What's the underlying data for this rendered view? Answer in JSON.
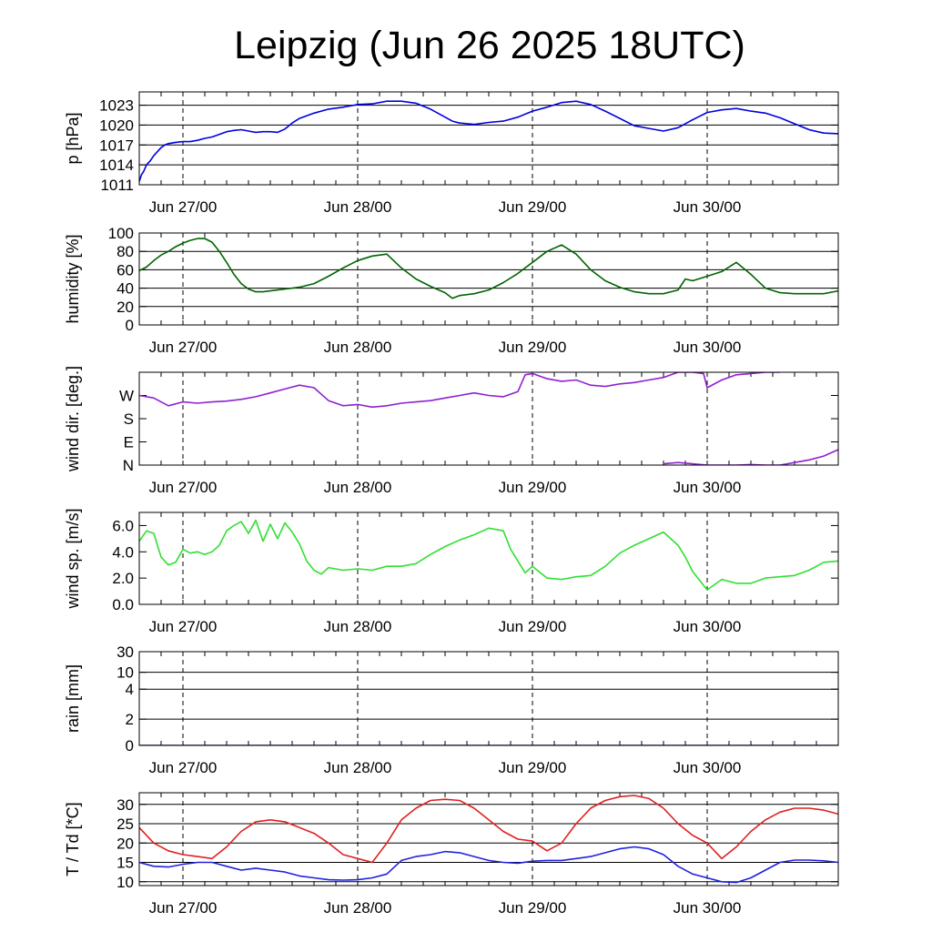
{
  "title": "Leipzig (Jun 26 2025 18UTC)",
  "chart_data": [
    {
      "type": "line",
      "ylabel": "p [hPa]",
      "ylim": [
        1011,
        1025
      ],
      "yticks": [
        1011,
        1014,
        1017,
        1020,
        1023
      ],
      "ytick_labels": [
        "1011",
        "1014",
        "1017",
        "1020",
        "1023"
      ],
      "xlim": [
        0,
        96
      ],
      "xticks": [
        6,
        30,
        54,
        78
      ],
      "xtick_labels": [
        "Jun 27/00",
        "Jun 28/00",
        "Jun 29/00",
        "Jun 30/00"
      ],
      "grid": true,
      "series": [
        {
          "color": "#0000e0",
          "x": [
            0,
            0.3,
            0.6,
            1,
            1.5,
            2,
            2.5,
            3,
            3.5,
            4,
            5,
            6,
            7,
            8,
            9,
            10,
            11,
            12,
            13,
            14,
            15,
            16,
            17,
            18,
            19,
            20,
            21,
            22,
            24,
            26,
            28,
            30,
            32,
            34,
            36,
            38,
            40,
            42,
            43,
            44,
            46,
            48,
            50,
            52,
            54,
            56,
            58,
            60,
            62,
            64,
            66,
            68,
            70,
            72,
            74,
            76,
            78,
            80,
            82,
            84,
            86,
            88,
            90,
            92,
            94,
            96
          ],
          "y": [
            1011.5,
            1012.5,
            1013,
            1014,
            1014.6,
            1015.4,
            1016,
            1016.6,
            1017,
            1017.2,
            1017.4,
            1017.5,
            1017.5,
            1017.7,
            1018,
            1018.2,
            1018.6,
            1019,
            1019.2,
            1019.3,
            1019.1,
            1018.9,
            1019,
            1019,
            1018.9,
            1019.4,
            1020.3,
            1021,
            1021.8,
            1022.4,
            1022.7,
            1023.1,
            1023.2,
            1023.6,
            1023.6,
            1023.3,
            1022.4,
            1021.2,
            1020.6,
            1020.3,
            1020.1,
            1020.4,
            1020.6,
            1021.2,
            1022.1,
            1022.7,
            1023.4,
            1023.6,
            1023.1,
            1022.1,
            1021,
            1019.9,
            1019.5,
            1019.1,
            1019.6,
            1020.8,
            1021.9,
            1022.3,
            1022.5,
            1022.1,
            1021.8,
            1021.1,
            1020.2,
            1019.3,
            1018.8,
            1018.7
          ]
        }
      ]
    },
    {
      "type": "line",
      "ylabel": "humidity [%]",
      "ylim": [
        0,
        100
      ],
      "yticks": [
        0,
        20,
        40,
        60,
        80,
        100
      ],
      "ytick_labels": [
        "0",
        "20",
        "40",
        "60",
        "80",
        "100"
      ],
      "xlim": [
        0,
        96
      ],
      "xticks": [
        6,
        30,
        54,
        78
      ],
      "xtick_labels": [
        "Jun 27/00",
        "Jun 28/00",
        "Jun 29/00",
        "Jun 30/00"
      ],
      "grid": true,
      "series": [
        {
          "color": "#006400",
          "x": [
            0,
            1,
            2,
            3,
            4,
            5,
            6,
            7,
            8,
            9,
            10,
            11,
            12,
            13,
            14,
            15,
            16,
            17,
            18,
            19,
            20,
            22,
            24,
            26,
            28,
            30,
            32,
            34,
            36,
            38,
            40,
            42,
            43,
            44,
            46,
            48,
            50,
            52,
            54,
            56,
            58,
            60,
            62,
            64,
            66,
            68,
            70,
            72,
            74,
            75,
            76,
            78,
            80,
            82,
            84,
            86,
            88,
            90,
            92,
            94,
            96
          ],
          "y": [
            59,
            63,
            70,
            76,
            80,
            85,
            89,
            92,
            94,
            94,
            90,
            80,
            68,
            55,
            45,
            39,
            36,
            36,
            37,
            38,
            39,
            41,
            45,
            53,
            62,
            70,
            75,
            77,
            62,
            50,
            42,
            35,
            29,
            32,
            34,
            38,
            46,
            56,
            68,
            80,
            87,
            77,
            60,
            48,
            41,
            36,
            34,
            34,
            38,
            50,
            48,
            53,
            58,
            68,
            55,
            40,
            35,
            34,
            34,
            34,
            37
          ]
        }
      ]
    },
    {
      "type": "line",
      "ylabel": "wind dir. [deg.]",
      "ylim": [
        0,
        360
      ],
      "yticks": [
        0,
        90,
        180,
        270
      ],
      "ytick_labels": [
        "N",
        "E",
        "S",
        "W"
      ],
      "xlim": [
        0,
        96
      ],
      "xticks": [
        6,
        30,
        54,
        78
      ],
      "xtick_labels": [
        "Jun 27/00",
        "Jun 28/00",
        "Jun 29/00",
        "Jun 30/00"
      ],
      "grid": false,
      "series": [
        {
          "color": "#9020d0",
          "x": [
            0,
            2,
            4,
            6,
            8,
            10,
            12,
            14,
            16,
            18,
            20,
            22,
            24,
            26,
            28,
            30,
            32,
            34,
            36,
            38,
            40,
            42,
            44,
            46,
            48,
            50,
            52,
            53,
            54,
            56,
            58,
            60,
            62,
            64,
            66,
            68,
            70,
            72,
            74,
            76,
            77.5,
            78,
            80,
            82,
            84,
            86,
            88
          ],
          "y": [
            270,
            260,
            230,
            245,
            240,
            245,
            248,
            255,
            265,
            280,
            295,
            310,
            300,
            250,
            230,
            235,
            225,
            230,
            240,
            245,
            250,
            260,
            270,
            280,
            270,
            265,
            285,
            350,
            355,
            335,
            325,
            330,
            310,
            305,
            315,
            320,
            330,
            340,
            360,
            360,
            355,
            300,
            330,
            350,
            355,
            360,
            360
          ]
        },
        {
          "color": "#9020d0",
          "x": [
            72,
            74,
            76,
            78,
            80,
            82,
            84,
            86,
            88,
            90,
            92,
            94,
            96
          ],
          "y": [
            5,
            10,
            5,
            0,
            0,
            0,
            2,
            0,
            0,
            10,
            20,
            35,
            60
          ]
        }
      ]
    },
    {
      "type": "line",
      "ylabel": "wind sp. [m/s]",
      "ylim": [
        0,
        7
      ],
      "yticks": [
        0,
        2,
        4,
        6
      ],
      "ytick_labels": [
        "0.0",
        "2.0",
        "4.0",
        "6.0"
      ],
      "xlim": [
        0,
        96
      ],
      "xticks": [
        6,
        30,
        54,
        78
      ],
      "xtick_labels": [
        "Jun 27/00",
        "Jun 28/00",
        "Jun 29/00",
        "Jun 30/00"
      ],
      "grid": false,
      "series": [
        {
          "color": "#30e030",
          "x": [
            0,
            1,
            2,
            3,
            4,
            5,
            6,
            7,
            8,
            9,
            10,
            11,
            12,
            13,
            14,
            15,
            16,
            17,
            18,
            19,
            20,
            21,
            22,
            23,
            24,
            25,
            26,
            28,
            30,
            32,
            34,
            36,
            38,
            40,
            42,
            44,
            46,
            48,
            50,
            51,
            52,
            53,
            54,
            56,
            58,
            60,
            62,
            64,
            66,
            68,
            70,
            72,
            73,
            74,
            75,
            76,
            78,
            80,
            82,
            84,
            86,
            88,
            90,
            92,
            94,
            96
          ],
          "y": [
            4.8,
            5.6,
            5.4,
            3.6,
            3.0,
            3.2,
            4.2,
            3.9,
            4.0,
            3.8,
            4.0,
            4.5,
            5.6,
            6.0,
            6.3,
            5.4,
            6.4,
            4.8,
            6.1,
            5.0,
            6.2,
            5.5,
            4.6,
            3.3,
            2.6,
            2.3,
            2.8,
            2.6,
            2.7,
            2.6,
            2.9,
            2.9,
            3.1,
            3.8,
            4.4,
            4.9,
            5.3,
            5.8,
            5.6,
            4.2,
            3.3,
            2.4,
            2.9,
            2.0,
            1.9,
            2.1,
            2.2,
            2.9,
            3.9,
            4.5,
            5.0,
            5.5,
            5.0,
            4.5,
            3.6,
            2.5,
            1.1,
            1.9,
            1.6,
            1.6,
            2.0,
            2.1,
            2.2,
            2.6,
            3.2,
            3.3
          ]
        }
      ]
    },
    {
      "type": "line",
      "ylabel": "rain [mm]",
      "ylim": [
        0,
        30
      ],
      "yticks": [
        0,
        2,
        4,
        10,
        30
      ],
      "ytick_labels": [
        "0",
        "2",
        "4",
        "10",
        "30"
      ],
      "ytick_frac": [
        0,
        0.28,
        0.6,
        0.78,
        1
      ],
      "xlim": [
        0,
        96
      ],
      "xticks": [
        6,
        30,
        54,
        78
      ],
      "xtick_labels": [
        "Jun 27/00",
        "Jun 28/00",
        "Jun 29/00",
        "Jun 30/00"
      ],
      "grid": true,
      "series": [
        {
          "color": "#00008b",
          "x": [
            0,
            96
          ],
          "y": [
            0,
            0
          ]
        }
      ]
    },
    {
      "type": "line",
      "ylabel": "T / Td [*C]",
      "ylim": [
        9,
        33
      ],
      "yticks": [
        10,
        15,
        20,
        25,
        30
      ],
      "ytick_labels": [
        "10",
        "15",
        "20",
        "25",
        "30"
      ],
      "xlim": [
        0,
        96
      ],
      "xticks": [
        6,
        30,
        54,
        78
      ],
      "xtick_labels": [
        "Jun 27/00",
        "Jun 28/00",
        "Jun 29/00",
        "Jun 30/00"
      ],
      "grid": true,
      "series": [
        {
          "color": "#e02020",
          "x": [
            0,
            2,
            4,
            6,
            8,
            10,
            12,
            14,
            16,
            18,
            20,
            22,
            24,
            26,
            28,
            30,
            32,
            34,
            36,
            38,
            40,
            42,
            44,
            46,
            48,
            50,
            52,
            54,
            56,
            58,
            60,
            62,
            64,
            66,
            68,
            70,
            72,
            74,
            76,
            78,
            80,
            82,
            84,
            86,
            88,
            90,
            92,
            94,
            96
          ],
          "y": [
            24,
            20,
            18,
            17,
            16.5,
            16,
            19,
            23,
            25.5,
            26,
            25.5,
            24,
            22.5,
            20,
            17,
            16,
            15,
            20,
            26,
            29,
            31,
            31.3,
            31,
            29,
            26,
            23,
            21,
            20.5,
            18,
            20,
            25,
            29,
            31,
            32,
            32.3,
            31.5,
            29,
            25,
            22,
            20,
            16,
            19,
            23,
            26,
            28,
            29,
            29,
            28.5,
            27.5
          ]
        },
        {
          "color": "#2020e0",
          "x": [
            0,
            2,
            4,
            6,
            8,
            10,
            12,
            14,
            16,
            18,
            20,
            22,
            24,
            26,
            28,
            30,
            32,
            34,
            36,
            38,
            40,
            42,
            44,
            46,
            48,
            50,
            52,
            54,
            56,
            58,
            60,
            62,
            64,
            66,
            68,
            70,
            72,
            74,
            76,
            78,
            80,
            82,
            84,
            86,
            88,
            90,
            92,
            94,
            96
          ],
          "y": [
            15,
            14,
            13.8,
            14.5,
            15,
            15,
            14,
            13,
            13.5,
            13,
            12.5,
            11.5,
            11,
            10.5,
            10.4,
            10.5,
            11,
            12,
            15.5,
            16.5,
            17,
            17.8,
            17.5,
            16.5,
            15.5,
            15,
            14.8,
            15.3,
            15.5,
            15.5,
            16,
            16.5,
            17.5,
            18.5,
            19,
            18.5,
            17,
            14,
            12,
            11,
            10,
            9.8,
            11,
            13,
            15,
            15.6,
            15.6,
            15.4,
            15
          ]
        }
      ]
    }
  ]
}
